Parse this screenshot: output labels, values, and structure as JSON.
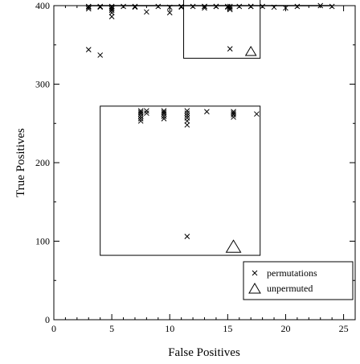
{
  "chart_data": {
    "type": "scatter",
    "xlabel": "False Positives",
    "ylabel": "True Positives",
    "xlim": [
      0,
      26
    ],
    "ylim": [
      0,
      400
    ],
    "x_ticks": [
      0,
      5,
      10,
      15,
      20,
      25
    ],
    "y_ticks": [
      0,
      100,
      200,
      300,
      400
    ],
    "grid": false,
    "legend_position": "bottom-right",
    "series": [
      {
        "name": "permutations",
        "marker": "x",
        "points": [
          [
            3,
            399
          ],
          [
            3,
            398
          ],
          [
            3,
            396
          ],
          [
            4,
            399
          ],
          [
            4,
            398
          ],
          [
            5,
            399
          ],
          [
            5,
            398
          ],
          [
            5,
            396
          ],
          [
            5,
            394
          ],
          [
            5,
            391
          ],
          [
            5,
            386
          ],
          [
            6,
            399
          ],
          [
            7,
            399
          ],
          [
            7,
            398
          ],
          [
            8,
            392
          ],
          [
            9,
            399
          ],
          [
            10,
            398
          ],
          [
            10,
            391
          ],
          [
            11,
            399
          ],
          [
            11,
            398
          ],
          [
            12,
            399
          ],
          [
            13,
            399
          ],
          [
            14,
            399
          ],
          [
            15,
            399
          ],
          [
            15,
            398
          ],
          [
            16,
            399
          ],
          [
            17,
            399
          ],
          [
            18,
            399
          ],
          [
            19,
            398
          ],
          [
            20,
            397
          ],
          [
            21,
            399
          ],
          [
            23,
            400
          ],
          [
            24,
            399
          ],
          [
            3,
            344
          ],
          [
            4,
            337
          ],
          [
            7.5,
            266
          ],
          [
            7.5,
            264
          ],
          [
            7.5,
            262
          ],
          [
            7.5,
            259
          ],
          [
            7.5,
            256
          ],
          [
            7.5,
            253
          ],
          [
            8,
            266
          ],
          [
            8,
            263
          ],
          [
            9.5,
            266
          ],
          [
            9.5,
            264
          ],
          [
            9.5,
            262
          ],
          [
            9.5,
            259
          ],
          [
            9.5,
            256
          ],
          [
            11.5,
            266
          ],
          [
            11.5,
            263
          ],
          [
            11.5,
            260
          ],
          [
            11.5,
            257
          ],
          [
            11.5,
            253
          ],
          [
            11.5,
            248
          ],
          [
            13.2,
            265
          ],
          [
            15.5,
            265
          ],
          [
            15.5,
            263
          ],
          [
            15.5,
            261
          ],
          [
            15.5,
            258
          ],
          [
            17.5,
            262
          ],
          [
            11.5,
            106
          ],
          [
            13,
            399
          ],
          [
            13,
            397
          ],
          [
            14,
            399
          ],
          [
            15.2,
            399
          ],
          [
            15.2,
            397
          ],
          [
            15.2,
            395
          ],
          [
            17,
            399
          ],
          [
            15.2,
            345
          ]
        ]
      },
      {
        "name": "unpermuted",
        "marker": "triangle",
        "points": [
          [
            15.5,
            92
          ],
          [
            17,
            341
          ]
        ]
      }
    ],
    "zoom_boxes": [
      {
        "x": [
          4,
          17.8
        ],
        "y": [
          82,
          272
        ]
      },
      {
        "x": [
          11.2,
          17.8
        ],
        "y": [
          333,
          409
        ]
      }
    ]
  }
}
